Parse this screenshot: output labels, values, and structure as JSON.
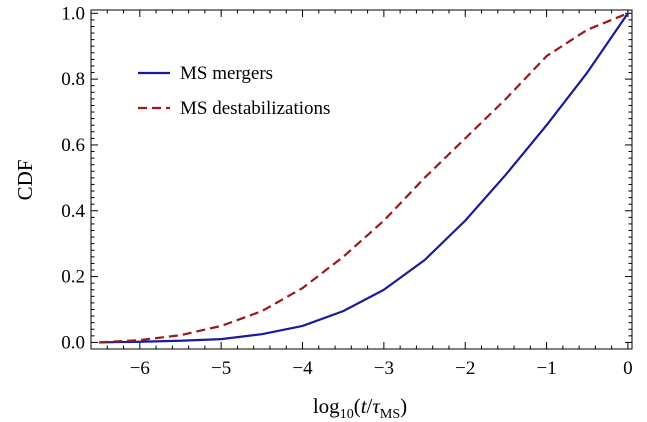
{
  "chart_data": {
    "type": "line",
    "xlabel_parts": {
      "base": "log",
      "sub": "10",
      "open": "(",
      "var": "t",
      "slash": "/",
      "tau": "τ",
      "tau_sub": "MS",
      "close": ")"
    },
    "ylabel": "CDF",
    "xlim": [
      -6.6,
      0.05
    ],
    "ylim": [
      -0.02,
      1.01
    ],
    "x_ticks": [
      -6,
      -5,
      -4,
      -3,
      -2,
      -1,
      0
    ],
    "x_tick_labels": [
      "−6",
      "−5",
      "−4",
      "−3",
      "−2",
      "−1",
      "0"
    ],
    "y_ticks": [
      0.0,
      0.2,
      0.4,
      0.6,
      0.8,
      1.0
    ],
    "y_tick_labels": [
      "0.0",
      "0.2",
      "0.4",
      "0.6",
      "0.8",
      "1.0"
    ],
    "grid": false,
    "legend_position": "top-left",
    "series": [
      {
        "name": "MS mergers",
        "color": "#1a1a9c",
        "dash": "solid",
        "x": [
          -6.5,
          -6.0,
          -5.5,
          -5.0,
          -4.5,
          -4.0,
          -3.5,
          -3.0,
          -2.5,
          -2.0,
          -1.5,
          -1.0,
          -0.5,
          0.0
        ],
        "y": [
          0.0,
          0.002,
          0.005,
          0.01,
          0.025,
          0.05,
          0.095,
          0.16,
          0.25,
          0.37,
          0.51,
          0.66,
          0.82,
          1.0
        ]
      },
      {
        "name": "MS destabilizations",
        "color": "#9a1818",
        "dash": "dashed",
        "x": [
          -6.5,
          -6.0,
          -5.5,
          -5.0,
          -4.5,
          -4.0,
          -3.5,
          -3.0,
          -2.5,
          -2.0,
          -1.5,
          -1.0,
          -0.5,
          0.0
        ],
        "y": [
          0.0,
          0.007,
          0.022,
          0.05,
          0.095,
          0.165,
          0.26,
          0.37,
          0.5,
          0.62,
          0.74,
          0.87,
          0.95,
          1.0
        ]
      }
    ]
  }
}
